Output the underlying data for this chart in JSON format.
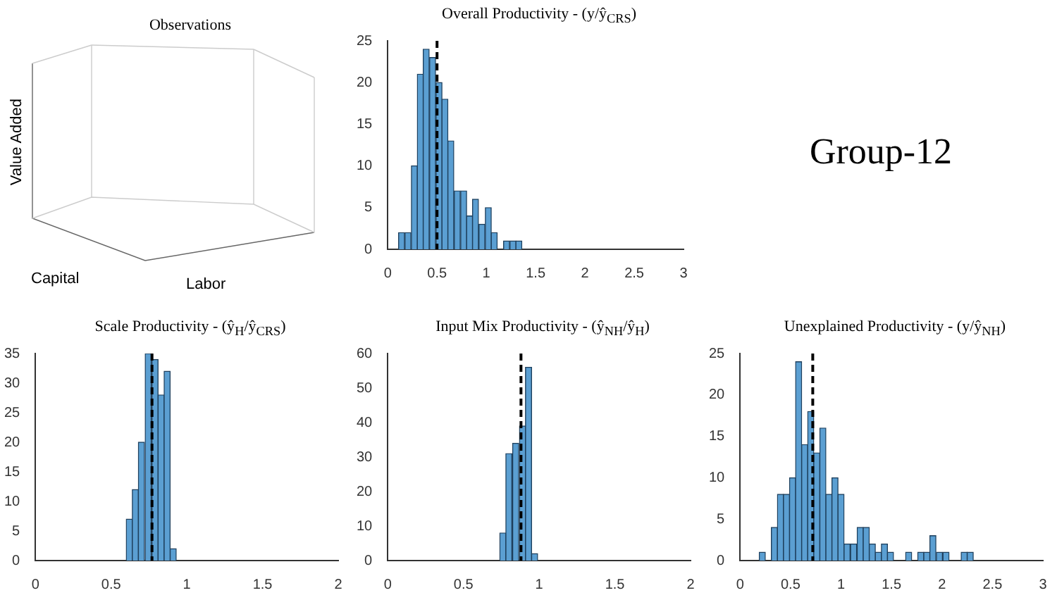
{
  "chart_data": [
    {
      "type": "other",
      "title": "Observations",
      "xlabel": "Labor",
      "ylabel": "Value Added",
      "annotations": [
        "Capital"
      ]
    },
    {
      "type": "histogram",
      "title": "Overall Productivity - (y/ŷ$_{CRS}$)",
      "color": "#5b9fd2",
      "bins": [
        0.11,
        0.17,
        0.24,
        0.3,
        0.36,
        0.42,
        0.49,
        0.55,
        0.61,
        0.67,
        0.74,
        0.8,
        0.86,
        0.92,
        0.99,
        1.05,
        1.11,
        1.17,
        1.24,
        1.3,
        1.36
      ],
      "values": [
        2,
        2,
        10,
        21,
        24,
        23,
        20,
        18,
        13,
        7,
        7,
        4,
        6,
        3,
        5,
        2,
        0,
        1,
        1,
        1
      ],
      "xlim": [
        0,
        3
      ],
      "xticks": [
        0,
        0.5,
        1,
        1.5,
        2,
        2.5,
        3
      ],
      "ylim": [
        0,
        25
      ],
      "yticks": [
        0,
        5,
        10,
        15,
        20,
        25
      ],
      "ref_lines": [
        {
          "axis": "x",
          "value": 0.5,
          "color": "#000000",
          "line_style": "dashed"
        }
      ]
    },
    {
      "type": "other",
      "title": "Group-12"
    },
    {
      "type": "histogram",
      "title": "Scale Productivity - (ŷ$_{H}$/ŷ$_{CRS}$)",
      "color": "#5b9fd2",
      "bins": [
        0.6,
        0.64,
        0.68,
        0.72,
        0.77,
        0.81,
        0.85,
        0.89,
        0.93
      ],
      "values": [
        7,
        12,
        20,
        35,
        34,
        28,
        32,
        2
      ],
      "xlim": [
        0,
        2
      ],
      "xticks": [
        0,
        0.5,
        1,
        1.5,
        2
      ],
      "ylim": [
        0,
        35
      ],
      "yticks": [
        0,
        5,
        10,
        15,
        20,
        25,
        30,
        35
      ],
      "ref_lines": [
        {
          "axis": "x",
          "value": 0.77,
          "color": "#000000",
          "line_style": "dashed"
        }
      ]
    },
    {
      "type": "histogram",
      "title": "Input Mix Productivity - (ŷ$_{NH}$/ŷ$_{H}$)",
      "color": "#5b9fd2",
      "bins": [
        0.74,
        0.78,
        0.82,
        0.87,
        0.91,
        0.95,
        0.99
      ],
      "values": [
        8,
        31,
        34,
        39,
        56,
        2
      ],
      "xlim": [
        0,
        2
      ],
      "xticks": [
        0,
        0.5,
        1,
        1.5,
        2
      ],
      "ylim": [
        0,
        60
      ],
      "yticks": [
        0,
        10,
        20,
        30,
        40,
        50,
        60
      ],
      "ref_lines": [
        {
          "axis": "x",
          "value": 0.88,
          "color": "#000000",
          "line_style": "dashed"
        }
      ]
    },
    {
      "type": "histogram",
      "title": "Unexplained Productivity - (y/ŷ$_{NH}$)",
      "color": "#5b9fd2",
      "bins": [
        0.19,
        0.25,
        0.31,
        0.37,
        0.43,
        0.49,
        0.55,
        0.61,
        0.67,
        0.73,
        0.79,
        0.85,
        0.91,
        0.97,
        1.03,
        1.09,
        1.16,
        1.22,
        1.28,
        1.34,
        1.4,
        1.46,
        1.52,
        1.58,
        1.64,
        1.7,
        1.76,
        1.82,
        1.88,
        1.94,
        2.01,
        2.07,
        2.13,
        2.19,
        2.25,
        2.31
      ],
      "values": [
        1,
        0,
        4,
        8,
        8,
        10,
        24,
        14,
        18,
        13,
        16,
        8,
        10,
        8,
        2,
        2,
        4,
        4,
        2,
        1,
        2,
        1,
        0,
        0,
        1,
        0,
        1,
        1,
        3,
        1,
        1,
        0,
        0,
        1,
        1
      ],
      "xlim": [
        0,
        3
      ],
      "xticks": [
        0,
        0.5,
        1,
        1.5,
        2,
        2.5,
        3
      ],
      "ylim": [
        0,
        25
      ],
      "yticks": [
        0,
        5,
        10,
        15,
        20,
        25
      ],
      "ref_lines": [
        {
          "axis": "x",
          "value": 0.72,
          "color": "#000000",
          "line_style": "dashed"
        }
      ]
    }
  ]
}
